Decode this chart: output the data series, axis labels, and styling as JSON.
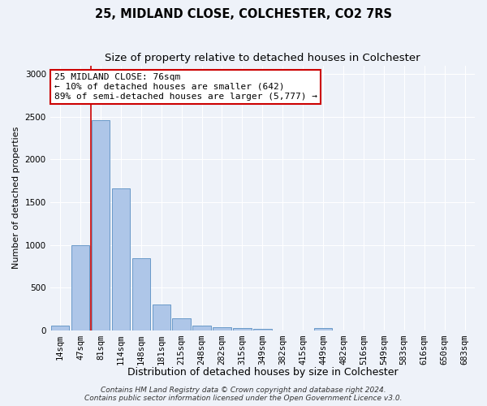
{
  "title": "25, MIDLAND CLOSE, COLCHESTER, CO2 7RS",
  "subtitle": "Size of property relative to detached houses in Colchester",
  "xlabel": "Distribution of detached houses by size in Colchester",
  "ylabel": "Number of detached properties",
  "categories": [
    "14sqm",
    "47sqm",
    "81sqm",
    "114sqm",
    "148sqm",
    "181sqm",
    "215sqm",
    "248sqm",
    "282sqm",
    "315sqm",
    "349sqm",
    "382sqm",
    "415sqm",
    "449sqm",
    "482sqm",
    "516sqm",
    "549sqm",
    "583sqm",
    "616sqm",
    "650sqm",
    "683sqm"
  ],
  "values": [
    55,
    1000,
    2460,
    1660,
    840,
    300,
    145,
    55,
    40,
    30,
    20,
    0,
    0,
    30,
    0,
    0,
    0,
    0,
    0,
    0,
    0
  ],
  "bar_color": "#aec6e8",
  "bar_edge_color": "#5a8fc2",
  "vline_color": "#cc0000",
  "annotation_text": "25 MIDLAND CLOSE: 76sqm\n← 10% of detached houses are smaller (642)\n89% of semi-detached houses are larger (5,777) →",
  "annotation_box_color": "#ffffff",
  "annotation_box_edge_color": "#cc0000",
  "ylim": [
    0,
    3100
  ],
  "yticks": [
    0,
    500,
    1000,
    1500,
    2000,
    2500,
    3000
  ],
  "footer_line1": "Contains HM Land Registry data © Crown copyright and database right 2024.",
  "footer_line2": "Contains public sector information licensed under the Open Government Licence v3.0.",
  "background_color": "#eef2f9",
  "title_fontsize": 10.5,
  "subtitle_fontsize": 9.5,
  "xlabel_fontsize": 9,
  "ylabel_fontsize": 8,
  "tick_fontsize": 7.5,
  "annotation_fontsize": 8,
  "footer_fontsize": 6.5
}
